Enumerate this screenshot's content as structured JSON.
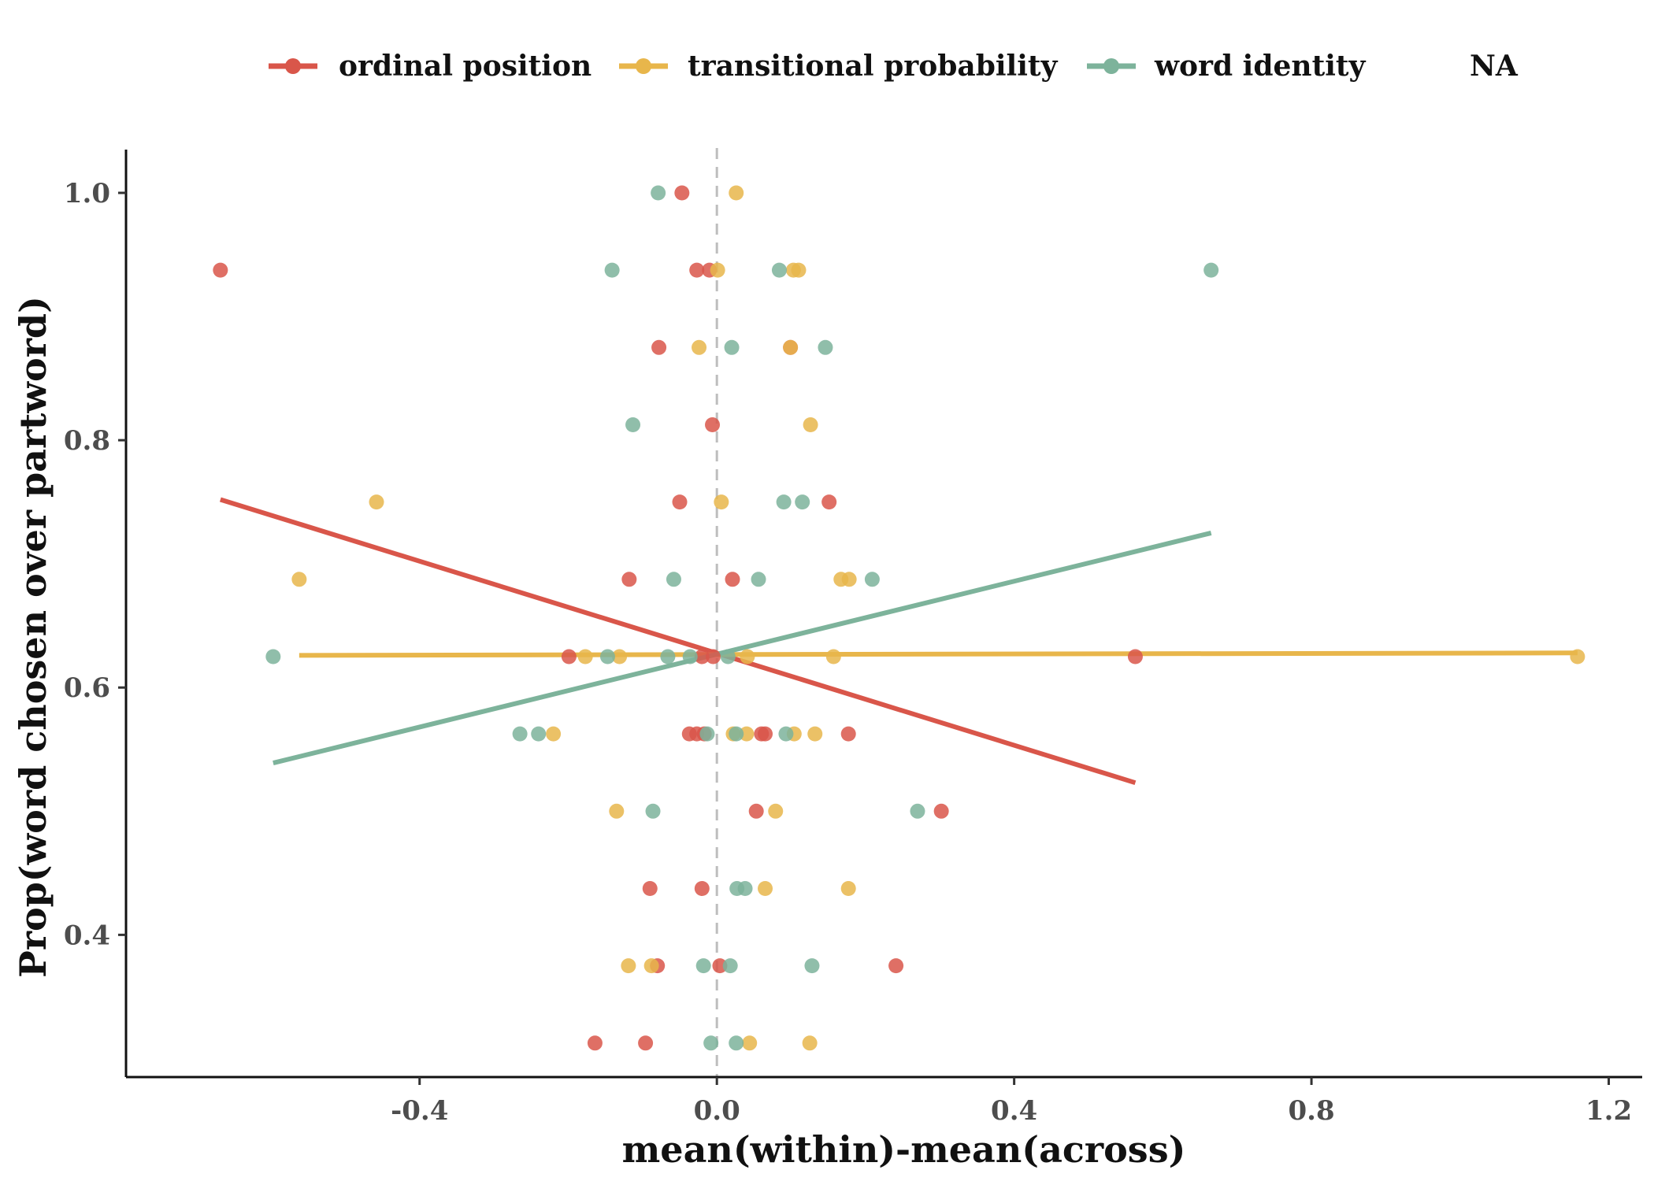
{
  "chart_data": {
    "type": "scatter",
    "xlabel": "mean(within)-mean(across)",
    "ylabel": "Prop(word chosen over partword)",
    "xlim": [
      -0.795,
      1.245
    ],
    "ylim": [
      0.285,
      1.035
    ],
    "x_ticks": [
      {
        "value": -0.4,
        "label": "-0.4"
      },
      {
        "value": 0.0,
        "label": "0.0"
      },
      {
        "value": 0.4,
        "label": "0.4"
      },
      {
        "value": 0.8,
        "label": "0.8"
      },
      {
        "value": 1.2,
        "label": "1.2"
      }
    ],
    "y_ticks": [
      {
        "value": 0.4,
        "label": "0.4"
      },
      {
        "value": 0.6,
        "label": "0.6"
      },
      {
        "value": 0.8,
        "label": "0.8"
      },
      {
        "value": 1.0,
        "label": "1.0"
      }
    ],
    "reference_line": {
      "x": 0.0,
      "style": "dashed",
      "color": "#bdbdbd"
    },
    "grid": false,
    "legend_position": "top",
    "legend_extra_label": "NA",
    "series": [
      {
        "name": "ordinal position",
        "color": "#d9564a",
        "points": [
          {
            "x": -0.047,
            "y": 1.0
          },
          {
            "x": -0.668,
            "y": 0.9375
          },
          {
            "x": -0.027,
            "y": 0.9375
          },
          {
            "x": -0.01,
            "y": 0.9375
          },
          {
            "x": -0.078,
            "y": 0.875
          },
          {
            "x": 0.099,
            "y": 0.875
          },
          {
            "x": -0.006,
            "y": 0.8125
          },
          {
            "x": -0.05,
            "y": 0.75
          },
          {
            "x": 0.151,
            "y": 0.75
          },
          {
            "x": -0.118,
            "y": 0.6875
          },
          {
            "x": 0.021,
            "y": 0.6875
          },
          {
            "x": -0.199,
            "y": 0.625
          },
          {
            "x": -0.02,
            "y": 0.625
          },
          {
            "x": -0.005,
            "y": 0.625
          },
          {
            "x": 0.563,
            "y": 0.625
          },
          {
            "x": -0.037,
            "y": 0.5625
          },
          {
            "x": -0.027,
            "y": 0.5625
          },
          {
            "x": -0.017,
            "y": 0.5625
          },
          {
            "x": 0.06,
            "y": 0.5625
          },
          {
            "x": 0.065,
            "y": 0.5625
          },
          {
            "x": 0.177,
            "y": 0.5625
          },
          {
            "x": 0.053,
            "y": 0.5
          },
          {
            "x": 0.302,
            "y": 0.5
          },
          {
            "x": -0.09,
            "y": 0.4375
          },
          {
            "x": -0.02,
            "y": 0.4375
          },
          {
            "x": -0.08,
            "y": 0.375
          },
          {
            "x": 0.004,
            "y": 0.375
          },
          {
            "x": 0.241,
            "y": 0.375
          },
          {
            "x": -0.164,
            "y": 0.3125
          },
          {
            "x": -0.096,
            "y": 0.3125
          }
        ],
        "fit": {
          "x1": -0.668,
          "y1": 0.752,
          "x2": 0.563,
          "y2": 0.523
        }
      },
      {
        "name": "transitional probability",
        "color": "#e8b64b",
        "points": [
          {
            "x": 0.026,
            "y": 1.0
          },
          {
            "x": 0.001,
            "y": 0.9375
          },
          {
            "x": 0.103,
            "y": 0.9375
          },
          {
            "x": 0.11,
            "y": 0.9375
          },
          {
            "x": -0.024,
            "y": 0.875
          },
          {
            "x": 0.099,
            "y": 0.875
          },
          {
            "x": 0.126,
            "y": 0.8125
          },
          {
            "x": -0.458,
            "y": 0.75
          },
          {
            "x": 0.006,
            "y": 0.75
          },
          {
            "x": -0.562,
            "y": 0.6875
          },
          {
            "x": 0.167,
            "y": 0.6875
          },
          {
            "x": 0.178,
            "y": 0.6875
          },
          {
            "x": -0.177,
            "y": 0.625
          },
          {
            "x": -0.131,
            "y": 0.625
          },
          {
            "x": 0.041,
            "y": 0.625
          },
          {
            "x": 0.157,
            "y": 0.625
          },
          {
            "x": 1.158,
            "y": 0.625
          },
          {
            "x": -0.22,
            "y": 0.5625
          },
          {
            "x": 0.022,
            "y": 0.5625
          },
          {
            "x": 0.04,
            "y": 0.5625
          },
          {
            "x": 0.104,
            "y": 0.5625
          },
          {
            "x": 0.132,
            "y": 0.5625
          },
          {
            "x": -0.135,
            "y": 0.5
          },
          {
            "x": 0.079,
            "y": 0.5
          },
          {
            "x": 0.065,
            "y": 0.4375
          },
          {
            "x": 0.177,
            "y": 0.4375
          },
          {
            "x": -0.119,
            "y": 0.375
          },
          {
            "x": -0.088,
            "y": 0.375
          },
          {
            "x": 0.044,
            "y": 0.3125
          },
          {
            "x": 0.125,
            "y": 0.3125
          }
        ],
        "fit": {
          "x1": -0.562,
          "y1": 0.626,
          "x2": 1.158,
          "y2": 0.628
        }
      },
      {
        "name": "word identity",
        "color": "#7db39b",
        "points": [
          {
            "x": -0.079,
            "y": 1.0
          },
          {
            "x": -0.141,
            "y": 0.9375
          },
          {
            "x": 0.084,
            "y": 0.9375
          },
          {
            "x": 0.665,
            "y": 0.9375
          },
          {
            "x": 0.02,
            "y": 0.875
          },
          {
            "x": 0.146,
            "y": 0.875
          },
          {
            "x": -0.113,
            "y": 0.8125
          },
          {
            "x": 0.09,
            "y": 0.75
          },
          {
            "x": 0.115,
            "y": 0.75
          },
          {
            "x": -0.058,
            "y": 0.6875
          },
          {
            "x": 0.056,
            "y": 0.6875
          },
          {
            "x": 0.209,
            "y": 0.6875
          },
          {
            "x": -0.597,
            "y": 0.625
          },
          {
            "x": -0.147,
            "y": 0.625
          },
          {
            "x": -0.066,
            "y": 0.625
          },
          {
            "x": -0.036,
            "y": 0.625
          },
          {
            "x": 0.015,
            "y": 0.625
          },
          {
            "x": -0.265,
            "y": 0.5625
          },
          {
            "x": -0.24,
            "y": 0.5625
          },
          {
            "x": -0.013,
            "y": 0.5625
          },
          {
            "x": 0.026,
            "y": 0.5625
          },
          {
            "x": 0.093,
            "y": 0.5625
          },
          {
            "x": -0.086,
            "y": 0.5
          },
          {
            "x": 0.27,
            "y": 0.5
          },
          {
            "x": 0.027,
            "y": 0.4375
          },
          {
            "x": 0.038,
            "y": 0.4375
          },
          {
            "x": -0.018,
            "y": 0.375
          },
          {
            "x": 0.018,
            "y": 0.375
          },
          {
            "x": 0.128,
            "y": 0.375
          },
          {
            "x": -0.008,
            "y": 0.3125
          },
          {
            "x": 0.026,
            "y": 0.3125
          }
        ],
        "fit": {
          "x1": -0.597,
          "y1": 0.539,
          "x2": 0.665,
          "y2": 0.725
        }
      }
    ]
  }
}
